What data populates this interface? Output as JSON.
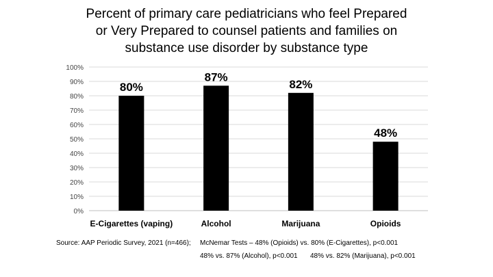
{
  "chart_data": {
    "type": "bar",
    "title_lines": [
      "Percent of primary care pediatricians who feel Prepared",
      "or Very Prepared to counsel patients and families on",
      "substance use disorder by substance type"
    ],
    "categories": [
      "E-Cigarettes (vaping)",
      "Alcohol",
      "Marijuana",
      "Opioids"
    ],
    "values": [
      80,
      87,
      82,
      48
    ],
    "data_labels": [
      "80%",
      "87%",
      "82%",
      "48%"
    ],
    "ylim": [
      0,
      100
    ],
    "yticks": [
      "0%",
      "10%",
      "20%",
      "30%",
      "40%",
      "50%",
      "60%",
      "70%",
      "80%",
      "90%",
      "100%"
    ],
    "grid": true,
    "legend": false,
    "bar_color": "#000000"
  },
  "footnote": {
    "source": "Source: AAP Periodic Survey, 2021 (n=466);",
    "tests_line1": "McNemar Tests – 48% (Opioids) vs. 80% (E-Cigarettes), p<0.001",
    "tests_line2a": "48% vs. 87% (Alcohol), p<0.001",
    "tests_line2b": "48% vs. 82% (Marijuana), p<0.001"
  }
}
